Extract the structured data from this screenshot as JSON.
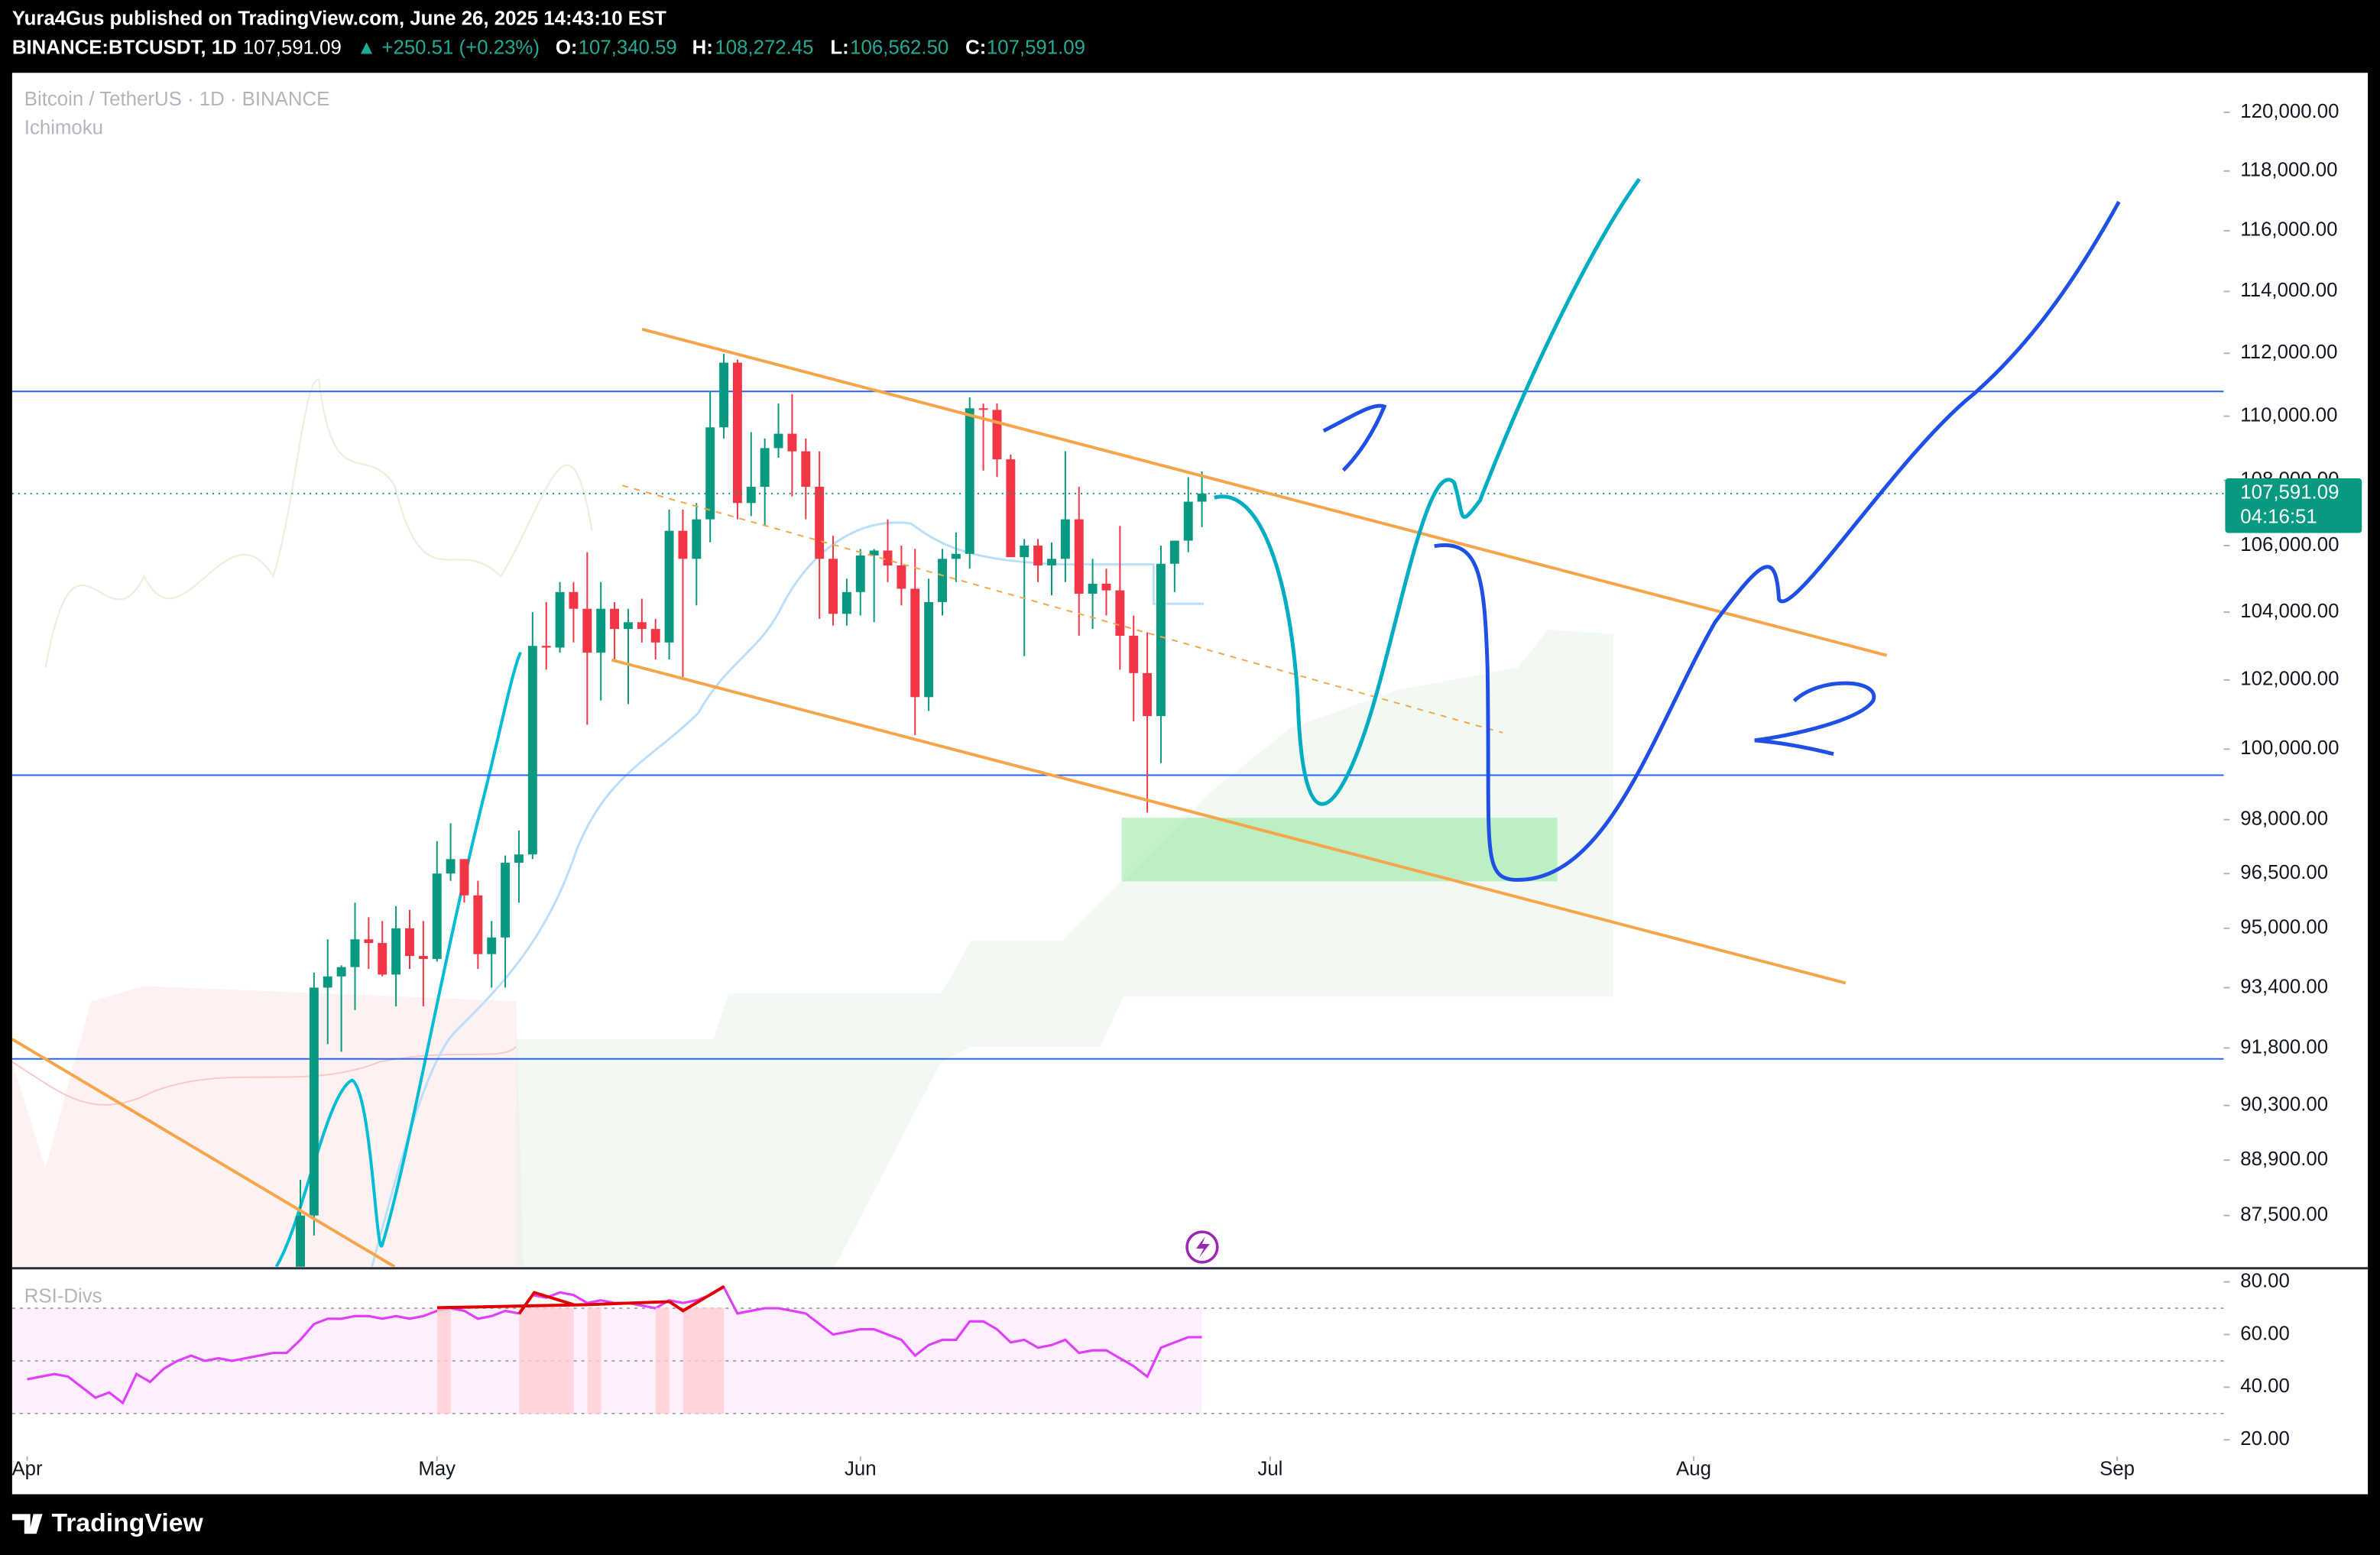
{
  "header": {
    "publisher": "Yura4Gus published on TradingView.com, June 26, 2025 14:43:10 EST",
    "symbol": "BINANCE:BTCUSDT, 1D",
    "last": "107,591.09",
    "change": "▲ +250.51 (+0.23%)",
    "o_label": "O:",
    "open": "107,340.59",
    "h_label": "H:",
    "high": "108,272.45",
    "l_label": "L:",
    "low": "106,562.50",
    "c_label": "C:",
    "close": "107,591.09"
  },
  "chart_data": [
    {
      "type": "candlestick",
      "title": "Bitcoin / TetherUS · 1D · BINANCE",
      "indicator": "Ichimoku",
      "x": [
        111,
        112,
        113,
        114,
        115,
        116,
        117,
        118,
        119,
        120,
        121,
        122,
        123,
        124,
        125,
        126,
        127,
        128,
        129,
        130,
        131,
        132,
        133,
        134,
        135,
        136,
        137,
        138,
        139,
        140,
        141,
        142,
        143,
        144,
        145,
        146,
        147,
        148,
        149,
        150,
        151,
        152,
        153,
        154,
        155,
        156,
        157,
        158,
        159,
        160,
        161,
        162,
        163,
        164,
        165,
        166,
        167,
        168,
        169,
        170,
        171,
        172,
        173,
        174,
        175,
        176,
        177
      ],
      "open": [
        85200,
        87500,
        93400,
        93700,
        93950,
        94700,
        94600,
        93750,
        95000,
        94250,
        94170,
        96500,
        96900,
        95900,
        94300,
        94750,
        96800,
        97030,
        103000,
        102950,
        104600,
        104100,
        102800,
        104100,
        103500,
        103700,
        103500,
        103100,
        106450,
        105600,
        106800,
        109650,
        111700,
        107300,
        107800,
        109000,
        109450,
        108900,
        107800,
        105600,
        103950,
        104600,
        105700,
        105850,
        105400,
        104700,
        101500,
        104300,
        105600,
        105750,
        110250,
        110200,
        108650,
        105650,
        106000,
        105400,
        105600,
        106800,
        104550,
        104850,
        104650,
        103300,
        102200,
        100950,
        105450,
        106150,
        107340.59
      ],
      "high": [
        88400,
        93800,
        94700,
        94000,
        95700,
        95300,
        95200,
        95600,
        95500,
        95200,
        97400,
        97900,
        96900,
        96300,
        95200,
        97000,
        97700,
        104000,
        104300,
        104900,
        104900,
        105800,
        104900,
        104300,
        104100,
        104400,
        103800,
        107100,
        107100,
        107300,
        110800,
        111980,
        111800,
        109500,
        109300,
        110400,
        110700,
        109300,
        108900,
        106300,
        105000,
        105900,
        105900,
        106800,
        106000,
        105900,
        105000,
        105900,
        106400,
        110600,
        110400,
        110400,
        108800,
        106200,
        106200,
        106100,
        108900,
        107800,
        105600,
        105300,
        106600,
        103900,
        103400,
        106000,
        106100,
        108100,
        108272.45
      ],
      "low": [
        85000,
        87000,
        91900,
        91700,
        92800,
        93900,
        93700,
        92900,
        93900,
        92900,
        94100,
        96300,
        95700,
        93900,
        93400,
        93400,
        95700,
        96900,
        102300,
        102800,
        103100,
        100700,
        101400,
        102600,
        101300,
        103100,
        102600,
        102600,
        102000,
        104200,
        106100,
        109300,
        106800,
        106900,
        106600,
        108700,
        107500,
        106800,
        103800,
        103600,
        103600,
        103900,
        103700,
        104900,
        104200,
        100400,
        101100,
        103900,
        104900,
        105300,
        108300,
        108100,
        105700,
        102700,
        104900,
        104500,
        104900,
        103300,
        103500,
        103900,
        102300,
        100800,
        98200,
        99600,
        104600,
        105800,
        106562.5
      ],
      "close": [
        87500,
        93400,
        93700,
        93950,
        94700,
        94600,
        93750,
        95000,
        94250,
        94170,
        96500,
        96900,
        95900,
        94300,
        94750,
        96800,
        97030,
        103000,
        102950,
        104600,
        104100,
        102800,
        104100,
        103500,
        103700,
        103500,
        103100,
        106450,
        105600,
        106800,
        109650,
        111700,
        107300,
        107800,
        109000,
        109450,
        108900,
        107800,
        105600,
        103950,
        104600,
        105700,
        105850,
        105400,
        104700,
        101500,
        104300,
        105600,
        105750,
        110250,
        110200,
        108650,
        105650,
        106000,
        105400,
        105600,
        106800,
        104550,
        104850,
        104650,
        103300,
        102200,
        100950,
        105450,
        106150,
        107340.59,
        107591.09
      ],
      "up_color": "#089981",
      "down_color": "#f23645",
      "log_scale": true,
      "grid": false,
      "xlim": [
        89.9,
        251.8
      ],
      "xticks": [
        {
          "value": 91,
          "label": "Apr"
        },
        {
          "value": 121,
          "label": "May"
        },
        {
          "value": 152,
          "label": "Jun"
        },
        {
          "value": 182,
          "label": "Jul"
        },
        {
          "value": 213,
          "label": "Aug"
        },
        {
          "value": 244,
          "label": "Sep"
        }
      ],
      "ylim": [
        86226,
        121364
      ],
      "yticks": [
        {
          "value": 120000,
          "label": "120,000.00"
        },
        {
          "value": 118000,
          "label": "118,000.00"
        },
        {
          "value": 116000,
          "label": "116,000.00"
        },
        {
          "value": 114000,
          "label": "114,000.00"
        },
        {
          "value": 112000,
          "label": "112,000.00"
        },
        {
          "value": 110000,
          "label": "110,000.00"
        },
        {
          "value": 108000,
          "label": "108,000.00"
        },
        {
          "value": 106000,
          "label": "106,000.00"
        },
        {
          "value": 104000,
          "label": "104,000.00"
        },
        {
          "value": 102000,
          "label": "102,000.00"
        },
        {
          "value": 100000,
          "label": "100,000.00"
        },
        {
          "value": 98000,
          "label": "98,000.00"
        },
        {
          "value": 96500,
          "label": "96,500.00"
        },
        {
          "value": 95000,
          "label": "95,000.00"
        },
        {
          "value": 93400,
          "label": "93,400.00"
        },
        {
          "value": 91800,
          "label": "91,800.00"
        },
        {
          "value": 90300,
          "label": "90,300.00"
        },
        {
          "value": 88900,
          "label": "88,900.00"
        },
        {
          "value": 87500,
          "label": "87,500.00"
        }
      ],
      "last_price_label": "107,591.09",
      "countdown": "04:16:51"
    },
    {
      "type": "line",
      "title": "RSI-Divs",
      "color": "#e040fb",
      "x": [
        91,
        92,
        93,
        94,
        95,
        96,
        97,
        98,
        99,
        100,
        101,
        102,
        103,
        104,
        105,
        106,
        107,
        108,
        109,
        110,
        111,
        112,
        113,
        114,
        115,
        116,
        117,
        118,
        119,
        120,
        121,
        122,
        123,
        124,
        125,
        126,
        127,
        128,
        129,
        130,
        131,
        132,
        133,
        134,
        135,
        136,
        137,
        138,
        139,
        140,
        141,
        142,
        143,
        144,
        145,
        146,
        147,
        148,
        149,
        150,
        151,
        152,
        153,
        154,
        155,
        156,
        157,
        158,
        159,
        160,
        161,
        162,
        163,
        164,
        165,
        166,
        167,
        168,
        169,
        170,
        171,
        172,
        173,
        174,
        175,
        176,
        177
      ],
      "values": [
        43,
        44,
        45,
        44,
        40,
        36,
        38,
        34,
        45,
        42,
        47,
        50,
        52,
        50,
        51,
        50,
        51,
        52,
        53,
        53,
        58,
        64,
        66,
        66,
        67,
        67,
        66,
        67,
        66,
        67,
        69,
        70,
        69,
        66,
        67,
        69,
        68,
        75,
        74,
        76,
        75,
        72,
        73,
        72,
        72,
        71,
        70,
        73,
        72,
        73,
        75,
        78,
        68,
        69,
        70,
        70,
        69,
        68,
        64,
        60,
        61,
        62,
        62,
        60,
        58,
        52,
        56,
        58,
        58,
        65,
        65,
        62,
        57,
        58,
        55,
        56,
        58,
        53,
        54,
        54,
        51,
        48,
        44,
        55,
        57,
        59,
        59
      ],
      "bands": [
        70,
        50,
        30
      ],
      "xlim": [
        89.9,
        251.8
      ],
      "ylim": [
        13.7,
        84.6
      ],
      "yticks": [
        {
          "value": 80,
          "label": "80.00"
        },
        {
          "value": 60,
          "label": "60.00"
        },
        {
          "value": 40,
          "label": "40.00"
        },
        {
          "value": 20,
          "label": "20.00"
        }
      ]
    }
  ],
  "footer": {
    "brand": "TradingView"
  }
}
